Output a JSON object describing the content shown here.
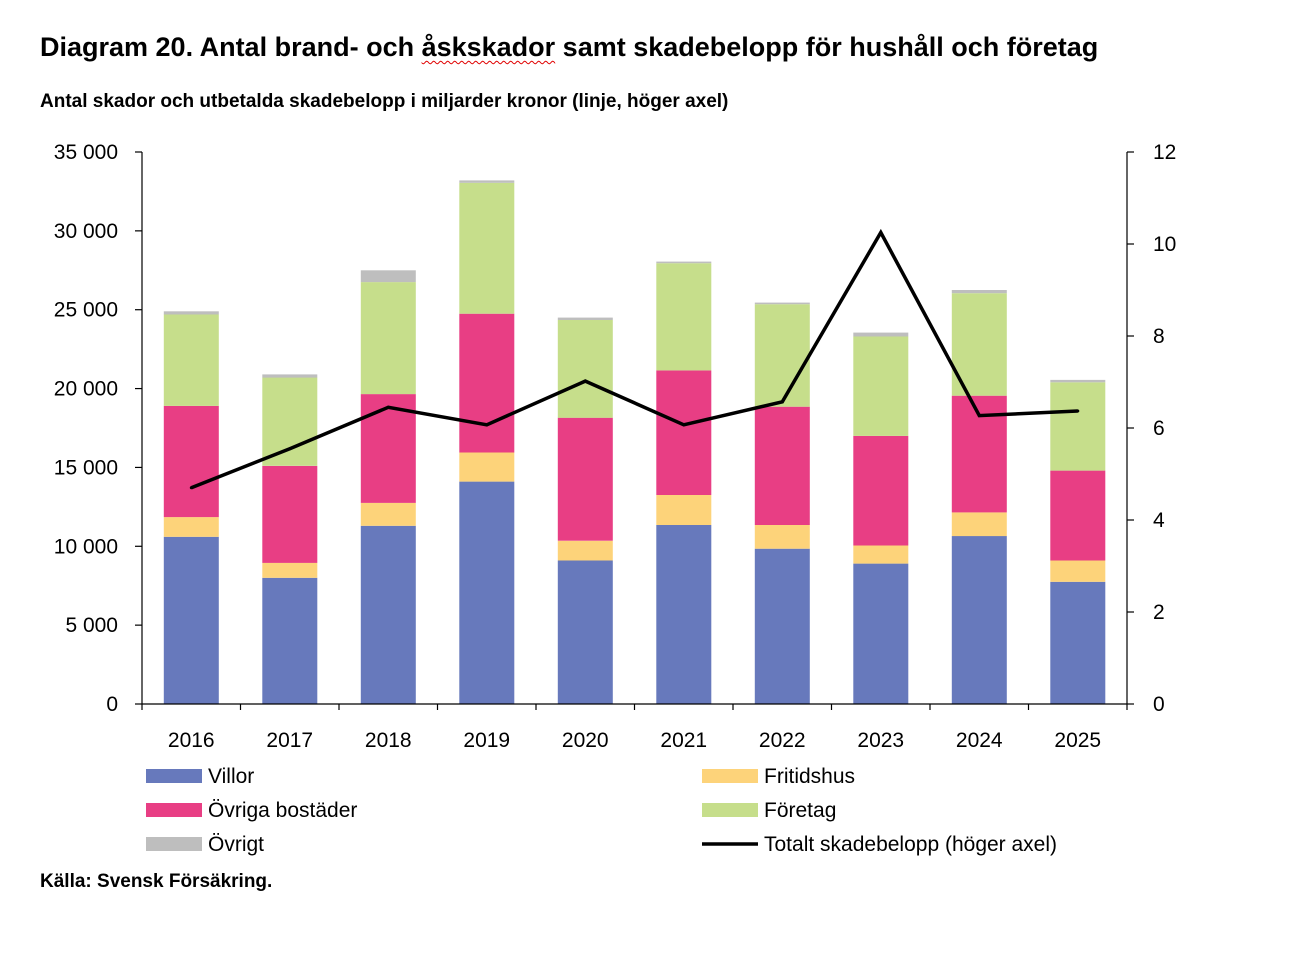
{
  "title_prefix": "Diagram 20. Antal brand- och ",
  "title_marked": "åskskador",
  "title_suffix": " samt skadebelopp för hushåll och företag",
  "subtitle": "Antal skador och utbetalda skadebelopp i miljarder kronor (linje, höger axel)",
  "source": "Källa: Svensk Försäkring.",
  "chart_data": {
    "type": "bar",
    "stacked": true,
    "categories": [
      "2016",
      "2017",
      "2018",
      "2019",
      "2020",
      "2021",
      "2022",
      "2023",
      "2024",
      "2025"
    ],
    "series": [
      {
        "name": "Villor",
        "color": "#6779BC",
        "axis": "left",
        "values": [
          10600,
          8000,
          11300,
          14100,
          9100,
          11350,
          9850,
          8900,
          10650,
          7750
        ]
      },
      {
        "name": "Fritidshus",
        "color": "#FDD37A",
        "axis": "left",
        "values": [
          1250,
          950,
          1450,
          1850,
          1250,
          1900,
          1500,
          1150,
          1500,
          1350
        ]
      },
      {
        "name": "Övriga bostäder",
        "color": "#E83E84",
        "axis": "left",
        "values": [
          7050,
          6150,
          6900,
          8800,
          7800,
          7900,
          7500,
          6950,
          7400,
          5700
        ]
      },
      {
        "name": "Företag",
        "color": "#C6DE8B",
        "axis": "left",
        "values": [
          5800,
          5600,
          7100,
          8300,
          6200,
          6800,
          6500,
          6300,
          6500,
          5600
        ]
      },
      {
        "name": "Övrigt",
        "color": "#BEBEBE",
        "axis": "left",
        "values": [
          200,
          200,
          750,
          150,
          150,
          100,
          100,
          250,
          200,
          150
        ]
      }
    ],
    "line": {
      "name": "Totalt skadebelopp (höger axel)",
      "color": "#000000",
      "axis": "right",
      "values": [
        4.7,
        5.55,
        6.45,
        6.07,
        7.02,
        6.07,
        6.57,
        10.25,
        6.27,
        6.37
      ]
    },
    "y_left": {
      "min": 0,
      "max": 35000,
      "ticks": [
        0,
        5000,
        10000,
        15000,
        20000,
        25000,
        30000,
        35000
      ],
      "tick_labels": [
        "0",
        "5 000",
        "10 000",
        "15 000",
        "20 000",
        "25 000",
        "30 000",
        "35 000"
      ]
    },
    "y_right": {
      "min": 0,
      "max": 12,
      "ticks": [
        0,
        2,
        4,
        6,
        8,
        10,
        12
      ],
      "tick_labels": [
        "0",
        "2",
        "4",
        "6",
        "8",
        "10",
        "12"
      ]
    },
    "legend": {
      "placement": "bottom",
      "items": [
        {
          "label": "Villor",
          "kind": "box",
          "color": "#6779BC"
        },
        {
          "label": "Fritidshus",
          "kind": "box",
          "color": "#FDD37A"
        },
        {
          "label": "Övriga bostäder",
          "kind": "box",
          "color": "#E83E84"
        },
        {
          "label": "Företag",
          "kind": "box",
          "color": "#C6DE8B"
        },
        {
          "label": "Övrigt",
          "kind": "box",
          "color": "#BEBEBE"
        },
        {
          "label": "Totalt skadebelopp (höger axel)",
          "kind": "line",
          "color": "#000000"
        }
      ]
    },
    "grid": false
  }
}
